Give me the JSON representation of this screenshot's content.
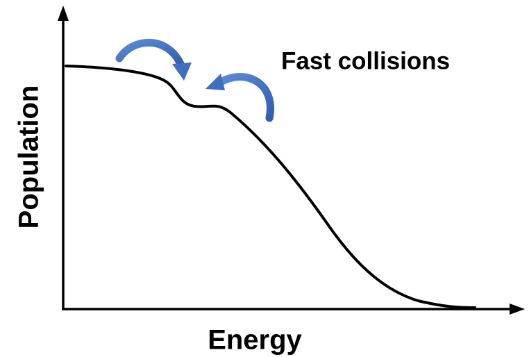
{
  "annotation": "Fast collisions",
  "x_axis_label": "Energy",
  "y_axis_label": "Population"
}
